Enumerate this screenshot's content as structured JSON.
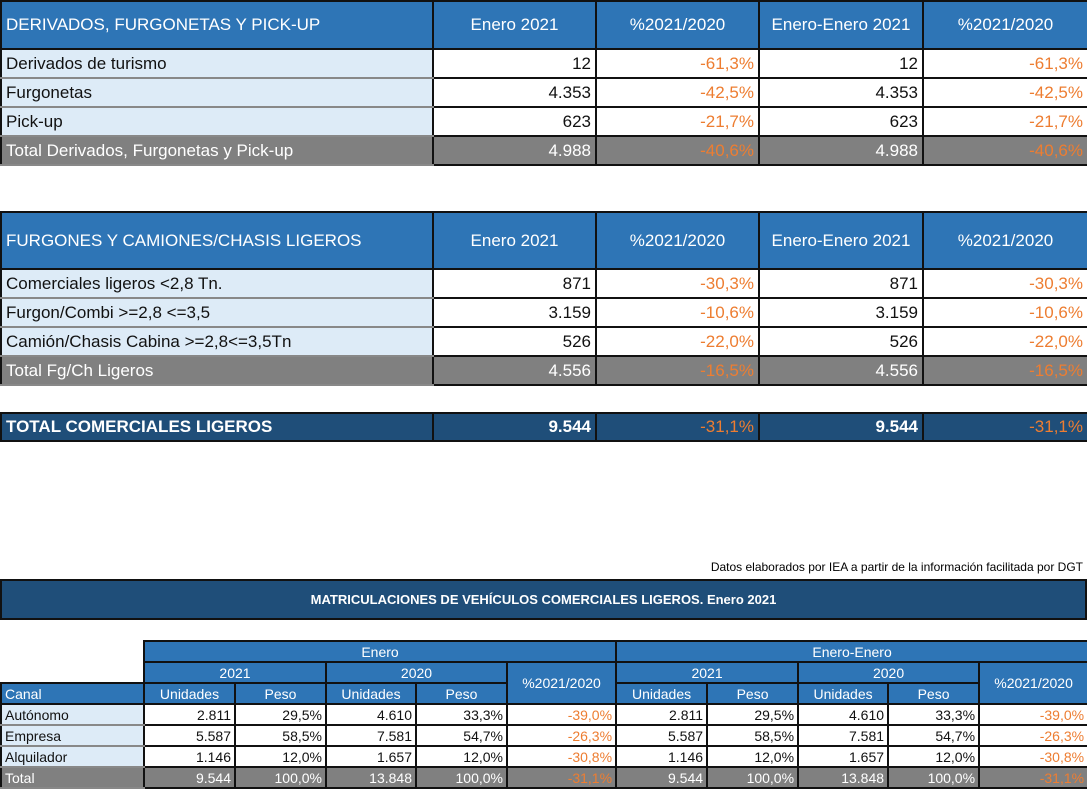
{
  "table1": {
    "header": [
      "DERIVADOS, FURGONETAS Y PICK-UP",
      "Enero 2021",
      "%2021/2020",
      "Enero-Enero 2021",
      "%2021/2020"
    ],
    "rows": [
      [
        "Derivados de turismo",
        "12",
        "-61,3%",
        "12",
        "-61,3%"
      ],
      [
        "Furgonetas",
        "4.353",
        "-42,5%",
        "4.353",
        "-42,5%"
      ],
      [
        "Pick-up",
        "623",
        "-21,7%",
        "623",
        "-21,7%"
      ]
    ],
    "total": [
      "Total Derivados, Furgonetas y Pick-up",
      "4.988",
      "-40,6%",
      "4.988",
      "-40,6%"
    ]
  },
  "table2": {
    "header": [
      "FURGONES Y CAMIONES/CHASIS LIGEROS",
      "Enero 2021",
      "%2021/2020",
      "Enero-Enero 2021",
      "%2021/2020"
    ],
    "rows": [
      [
        "Comerciales ligeros <2,8 Tn.",
        "871",
        "-30,3%",
        "871",
        "-30,3%"
      ],
      [
        "Furgon/Combi >=2,8 <=3,5",
        "3.159",
        "-10,6%",
        "3.159",
        "-10,6%"
      ],
      [
        "Camión/Chasis Cabina >=2,8<=3,5Tn",
        "526",
        "-22,0%",
        "526",
        "-22,0%"
      ]
    ],
    "total": [
      "Total Fg/Ch Ligeros",
      "4.556",
      "-16,5%",
      "4.556",
      "-16,5%"
    ]
  },
  "grand_total": [
    "TOTAL COMERCIALES LIGEROS",
    "9.544",
    "-31,1%",
    "9.544",
    "-31,1%"
  ],
  "source": "Datos elaborados por IEA a partir de la información facilitada por DGT",
  "title": "MATRICULACIONES DE VEHÍCULOS COMERCIALES LIGEROS. Enero 2021",
  "table3": {
    "groups": [
      "Enero",
      "Enero-Enero"
    ],
    "years": [
      "2021",
      "2020"
    ],
    "pct": "%2021/2020",
    "canal": "Canal",
    "units": "Unidades",
    "peso": "Peso",
    "rows": [
      [
        "Autónomo",
        "2.811",
        "29,5%",
        "4.610",
        "33,3%",
        "-39,0%",
        "2.811",
        "29,5%",
        "4.610",
        "33,3%",
        "-39,0%"
      ],
      [
        "Empresa",
        "5.587",
        "58,5%",
        "7.581",
        "54,7%",
        "-26,3%",
        "5.587",
        "58,5%",
        "7.581",
        "54,7%",
        "-26,3%"
      ],
      [
        "Alquilador",
        "1.146",
        "12,0%",
        "1.657",
        "12,0%",
        "-30,8%",
        "1.146",
        "12,0%",
        "1.657",
        "12,0%",
        "-30,8%"
      ],
      [
        "Total",
        "9.544",
        "100,0%",
        "13.848",
        "100,0%",
        "-31,1%",
        "9.544",
        "100,0%",
        "13.848",
        "100,0%",
        "-31,1%"
      ]
    ]
  },
  "colors": {
    "header": "#2E75B6",
    "dark": "#1F4E79",
    "label": "#DDEBF7",
    "total": "#808080",
    "negative": "#ED7D31"
  }
}
